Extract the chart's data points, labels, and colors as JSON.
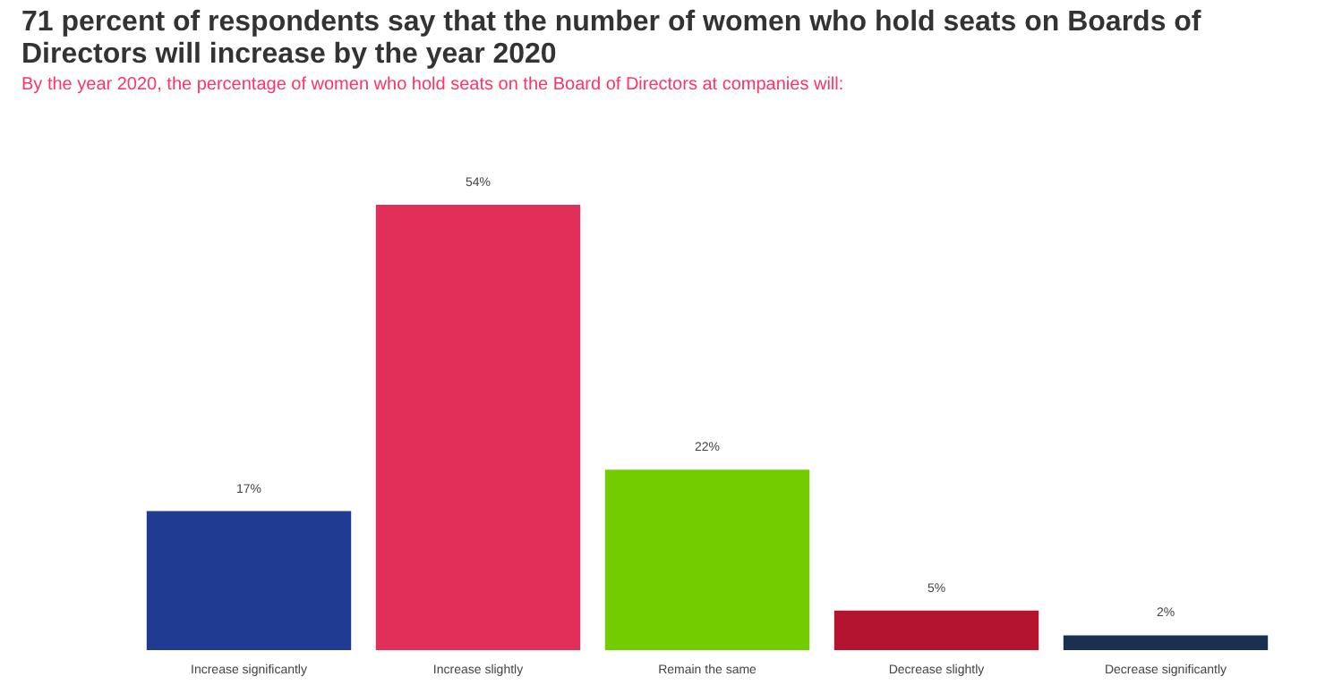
{
  "chart_data": {
    "type": "bar",
    "title": "71 percent of respondents say that the number of women who hold seats on Boards of Directors will increase by the year 2020",
    "subtitle": "By the year 2020, the percentage of women who hold seats on the Board of Directors at companies will:",
    "categories": [
      "Increase significantly",
      "Increase slightly",
      "Remain the same",
      "Decrease slightly",
      "Decrease significantly"
    ],
    "values": [
      17,
      54,
      22,
      5,
      2
    ],
    "value_labels": [
      "17%",
      "54%",
      "22%",
      "5%",
      "2%"
    ],
    "colors": [
      "#1f3c92",
      "#e0305a",
      "#72cc00",
      "#b5142f",
      "#1a3050"
    ]
  }
}
